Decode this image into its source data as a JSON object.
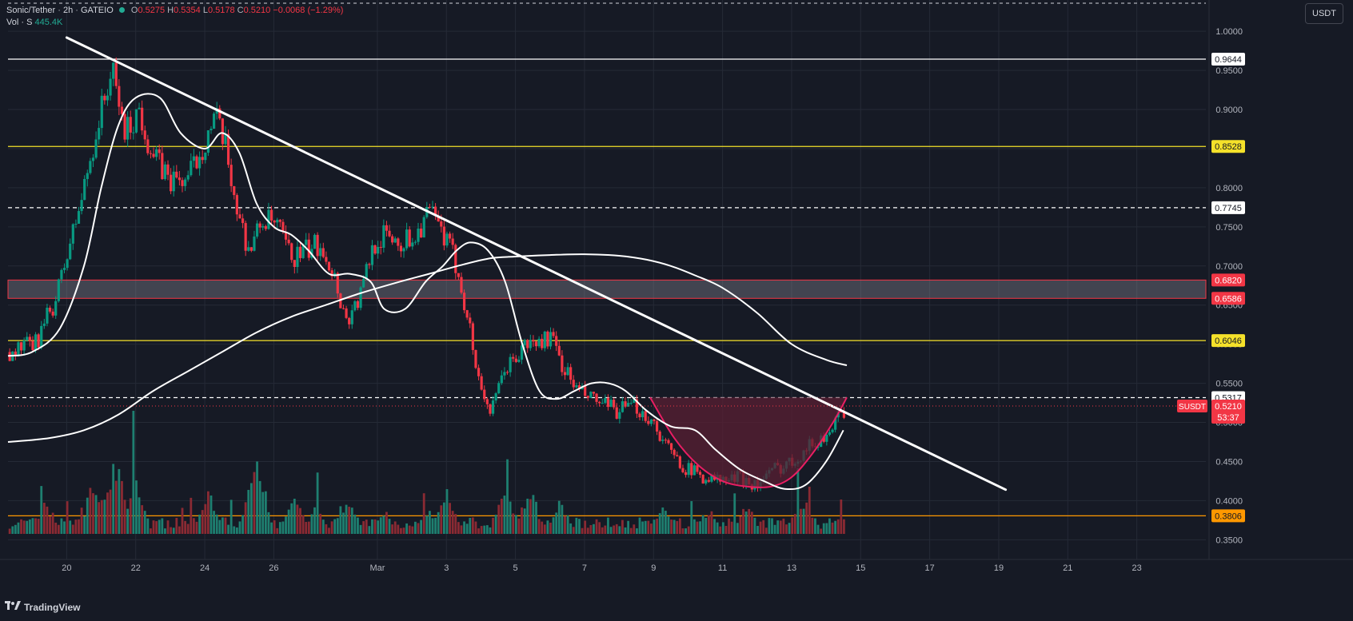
{
  "header": {
    "symbol": "Sonic/Tether",
    "interval": "2h",
    "exchange": "GATEIO",
    "open_label": "O",
    "open": "0.5275",
    "high_label": "H",
    "high": "0.5354",
    "low_label": "L",
    "low": "0.5178",
    "close_label": "C",
    "close": "0.5210",
    "change": "−0.0068 (−1.29%)",
    "volume_label": "Vol · S",
    "volume": "445.4K",
    "status_dot_color": "#22ab94"
  },
  "currency_button": "USDT",
  "branding": "TradingView",
  "colors": {
    "background": "#161a25",
    "grid": "#252a36",
    "up": "#089981",
    "down": "#f23645",
    "up_volume": "#1e7f70",
    "down_volume": "#8a2a33",
    "moving_average": "#ffffff",
    "trendline": "#ffffff",
    "yellow_level": "#f5e12a",
    "orange_level": "#ff9800",
    "zone_border": "#f23645",
    "cup_fill": "#5a1f33",
    "cup_line": "#e91e63"
  },
  "chart_data": {
    "type": "candlestick",
    "title": "Sonic/Tether · 2h · GATEIO",
    "x_tick_labels": [
      "20",
      "22",
      "24",
      "26",
      "Mar",
      "3",
      "5",
      "7",
      "9",
      "11",
      "13",
      "15",
      "17",
      "19",
      "21",
      "23"
    ],
    "x_tick_days": [
      20,
      22,
      24,
      26,
      29,
      31,
      33,
      35,
      37,
      39,
      41,
      43,
      45,
      47,
      49,
      51
    ],
    "x_day_range": [
      18.3,
      53.0
    ],
    "y_tick_labels": [
      "1.0000",
      "0.9500",
      "0.9000",
      "0.8500",
      "0.8000",
      "0.7500",
      "0.7000",
      "0.6500",
      "0.6000",
      "0.5500",
      "0.5000",
      "0.4500",
      "0.4000",
      "0.3500"
    ],
    "y_ticks": [
      1.0,
      0.95,
      0.9,
      0.85,
      0.8,
      0.75,
      0.7,
      0.65,
      0.6,
      0.55,
      0.5,
      0.45,
      0.4,
      0.35
    ],
    "ylim": [
      0.335,
      1.04
    ],
    "price_path": {
      "days": [
        18.3,
        19.1,
        19.7,
        20.4,
        20.9,
        21.3,
        21.7,
        22.1,
        22.5,
        23.0,
        23.5,
        24.0,
        24.3,
        24.6,
        25.0,
        25.3,
        25.7,
        26.1,
        26.5,
        27.0,
        27.4,
        27.8,
        28.1,
        28.5,
        28.9,
        29.3,
        29.7,
        30.1,
        30.5,
        30.9,
        31.3,
        31.6,
        31.9,
        32.3,
        32.7,
        33.0,
        33.3,
        33.6,
        34.0,
        34.4,
        34.8,
        35.2,
        35.6,
        36.0,
        36.5,
        37.0,
        37.5,
        38.0,
        38.5,
        39.0,
        39.5,
        40.0,
        40.5,
        41.0,
        41.5,
        41.9,
        42.3,
        42.6
      ],
      "prices": [
        0.59,
        0.6,
        0.66,
        0.78,
        0.88,
        0.95,
        0.87,
        0.9,
        0.84,
        0.81,
        0.81,
        0.86,
        0.89,
        0.85,
        0.76,
        0.72,
        0.76,
        0.75,
        0.71,
        0.72,
        0.73,
        0.68,
        0.63,
        0.66,
        0.73,
        0.74,
        0.73,
        0.74,
        0.77,
        0.74,
        0.7,
        0.64,
        0.56,
        0.51,
        0.57,
        0.58,
        0.6,
        0.6,
        0.61,
        0.57,
        0.54,
        0.53,
        0.52,
        0.515,
        0.52,
        0.5,
        0.46,
        0.44,
        0.43,
        0.425,
        0.43,
        0.42,
        0.44,
        0.45,
        0.47,
        0.48,
        0.5,
        0.521
      ]
    },
    "volume": {
      "max": 100,
      "baseline_level": 10,
      "spikes": [
        [
          19.4,
          35
        ],
        [
          20.8,
          60
        ],
        [
          21.4,
          85
        ],
        [
          22.0,
          55
        ],
        [
          24.1,
          45
        ],
        [
          25.5,
          95
        ],
        [
          26.6,
          38
        ],
        [
          27.2,
          30
        ],
        [
          28.1,
          40
        ],
        [
          29.2,
          25
        ],
        [
          30.5,
          28
        ],
        [
          31.0,
          45
        ],
        [
          32.7,
          50
        ],
        [
          33.4,
          55
        ],
        [
          34.3,
          35
        ],
        [
          37.3,
          30
        ],
        [
          38.6,
          30
        ],
        [
          39.7,
          32
        ],
        [
          41.3,
          42
        ],
        [
          42.5,
          20
        ]
      ]
    },
    "moving_averages": [
      {
        "days": [
          18.3,
          19.0,
          19.8,
          20.5,
          21.0,
          21.5,
          22.0,
          22.7,
          23.3,
          24.0,
          24.5,
          25.0,
          25.5,
          26.0,
          26.5,
          27.0,
          27.6,
          28.2,
          28.8,
          29.2,
          29.8,
          30.4,
          30.9,
          31.3,
          31.7,
          32.2,
          32.7,
          33.2,
          33.7,
          34.2,
          34.7,
          35.2,
          35.7,
          36.2,
          36.8,
          37.5,
          38.2,
          38.8,
          39.5,
          40.2,
          40.8,
          41.4,
          42.0,
          42.5
        ],
        "values": [
          0.585,
          0.59,
          0.62,
          0.7,
          0.8,
          0.88,
          0.915,
          0.915,
          0.87,
          0.85,
          0.87,
          0.845,
          0.78,
          0.75,
          0.74,
          0.72,
          0.69,
          0.69,
          0.68,
          0.645,
          0.645,
          0.68,
          0.7,
          0.72,
          0.73,
          0.72,
          0.68,
          0.6,
          0.54,
          0.53,
          0.54,
          0.55,
          0.55,
          0.54,
          0.515,
          0.495,
          0.49,
          0.465,
          0.44,
          0.425,
          0.415,
          0.42,
          0.45,
          0.49
        ]
      },
      {
        "days": [
          18.3,
          19.5,
          20.5,
          21.5,
          22.5,
          23.5,
          24.5,
          25.5,
          26.5,
          27.5,
          28.5,
          29.5,
          30.5,
          31.5,
          32.3,
          33.0,
          34.0,
          35.0,
          36.0,
          36.8,
          37.5,
          38.2,
          39.0,
          40.0,
          41.0,
          42.0,
          42.6
        ],
        "values": [
          0.475,
          0.48,
          0.49,
          0.51,
          0.54,
          0.565,
          0.59,
          0.615,
          0.635,
          0.65,
          0.665,
          0.678,
          0.69,
          0.702,
          0.71,
          0.712,
          0.714,
          0.715,
          0.713,
          0.708,
          0.7,
          0.688,
          0.672,
          0.64,
          0.6,
          0.58,
          0.573
        ]
      }
    ],
    "trendline": {
      "start": [
        20.0,
        0.992
      ],
      "end": [
        47.2,
        0.414
      ]
    },
    "cup": {
      "days": [
        36.9,
        37.6,
        38.3,
        39.0,
        39.7,
        40.4,
        41.0,
        41.6,
        42.2,
        42.6
      ],
      "prices": [
        0.532,
        0.48,
        0.445,
        0.425,
        0.418,
        0.418,
        0.43,
        0.46,
        0.5,
        0.532
      ]
    },
    "zone": {
      "top": 0.682,
      "bottom": 0.6586
    },
    "levels": [
      {
        "price": 0.9644,
        "label": "0.9644",
        "style": "solid",
        "color": "#ffffff",
        "label_bg": "#ffffff",
        "label_fg": "#131722"
      },
      {
        "price": 0.8528,
        "label": "0.8528",
        "style": "solid",
        "color": "#f5e12a",
        "label_bg": "#f5e12a",
        "label_fg": "#131722"
      },
      {
        "price": 0.7745,
        "label": "0.7745",
        "style": "dashed",
        "color": "#ffffff",
        "label_bg": "#ffffff",
        "label_fg": "#131722"
      },
      {
        "price": 0.682,
        "label": "0.6820",
        "style": "none",
        "color": "#f23645",
        "label_bg": "#f23645",
        "label_fg": "#ffffff"
      },
      {
        "price": 0.6586,
        "label": "0.6586",
        "style": "none",
        "color": "#f23645",
        "label_bg": "#f23645",
        "label_fg": "#ffffff"
      },
      {
        "price": 0.6046,
        "label": "0.6046",
        "style": "solid",
        "color": "#f5e12a",
        "label_bg": "#f5e12a",
        "label_fg": "#131722"
      },
      {
        "price": 0.5317,
        "label": "0.5317",
        "style": "dashed",
        "color": "#ffffff",
        "label_bg": "#ffffff",
        "label_fg": "#131722"
      },
      {
        "price": 0.3806,
        "label": "0.3806",
        "style": "solid",
        "color": "#ff9800",
        "label_bg": "#ff9800",
        "label_fg": "#131722"
      }
    ],
    "current_price": {
      "price": 0.521,
      "label": "0.5210",
      "countdown": "53:37",
      "symbol_tag": "SUSDT"
    },
    "top_dashed_level": 1.04
  }
}
